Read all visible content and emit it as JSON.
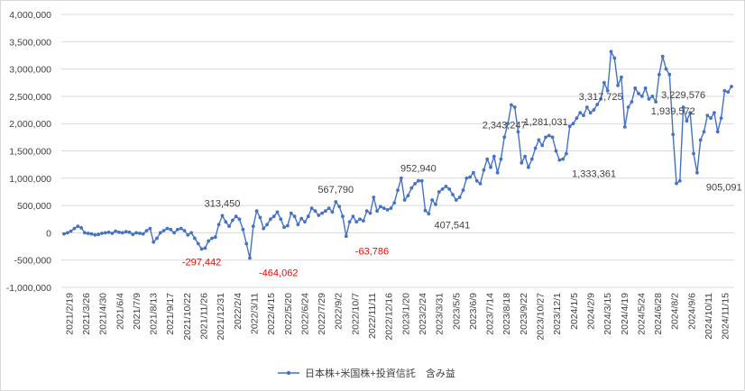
{
  "chart_data": {
    "type": "line",
    "title": "",
    "xlabel": "",
    "ylabel": "",
    "ylim": [
      -1000000,
      4000000
    ],
    "y_ticks": [
      "4,000,000",
      "3,500,000",
      "3,000,000",
      "2,500,000",
      "2,000,000",
      "1,500,000",
      "1,000,000",
      "500,000",
      "0",
      "-500,000",
      "-1,000,000"
    ],
    "y_tick_values": [
      4000000,
      3500000,
      3000000,
      2500000,
      2000000,
      1500000,
      1000000,
      500000,
      0,
      -500000,
      -1000000
    ],
    "x_ticks": [
      "2021/2/19",
      "2021/3/26",
      "2021/4/30",
      "2021/6/4",
      "2021/7/9",
      "2021/8/13",
      "2021/9/17",
      "2021/10/22",
      "2021/11/26",
      "2021/12/31",
      "2022/2/4",
      "2022/3/11",
      "2022/4/15",
      "2022/5/20",
      "2022/6/24",
      "2022/7/29",
      "2022/9/2",
      "2022/10/7",
      "2022/11/11",
      "2022/12/16",
      "2023/1/20",
      "2023/2/24",
      "2023/3/31",
      "2023/5/5",
      "2023/6/9",
      "2023/7/14",
      "2023/8/18",
      "2023/9/22",
      "2023/10/27",
      "2023/12/1",
      "2024/1/5",
      "2024/2/9",
      "2024/3/15",
      "2024/4/19",
      "2024/5/24",
      "2024/6/28",
      "2024/8/2",
      "2024/9/6",
      "2024/10/11",
      "2024/11/15"
    ],
    "grid": true,
    "legend": "bottom",
    "series": [
      {
        "name": "日本株+米国株+投資信託　含み益",
        "color": "#4472c4",
        "values": [
          -20000,
          0,
          30000,
          80000,
          120000,
          90000,
          0,
          -10000,
          -20000,
          -40000,
          -30000,
          -10000,
          0,
          10000,
          -10000,
          30000,
          10000,
          0,
          20000,
          10000,
          -30000,
          0,
          -10000,
          -20000,
          40000,
          80000,
          -170000,
          -100000,
          0,
          40000,
          80000,
          60000,
          0,
          60000,
          80000,
          40000,
          -40000,
          0,
          -100000,
          -200000,
          -297442,
          -280000,
          -150000,
          -100000,
          -80000,
          150000,
          313450,
          200000,
          120000,
          230000,
          300000,
          250000,
          60000,
          -200000,
          -464062,
          120000,
          400000,
          280000,
          80000,
          150000,
          250000,
          300000,
          380000,
          250000,
          100000,
          130000,
          360000,
          300000,
          150000,
          260000,
          200000,
          300000,
          450000,
          400000,
          320000,
          360000,
          400000,
          450000,
          380000,
          567790,
          480000,
          300000,
          -63786,
          200000,
          300000,
          200000,
          250000,
          220000,
          400000,
          360000,
          650000,
          400000,
          480000,
          450000,
          420000,
          450000,
          550000,
          780000,
          1000000,
          600000,
          680000,
          820000,
          900000,
          952940,
          950000,
          407541,
          350000,
          600000,
          520000,
          750000,
          800000,
          850000,
          800000,
          700000,
          600000,
          650000,
          780000,
          1000000,
          1020000,
          1100000,
          950000,
          900000,
          1150000,
          1350000,
          1200000,
          1400000,
          1100000,
          1350000,
          1750000,
          2000000,
          2343247,
          2300000,
          1850000,
          1281031,
          1400000,
          1200000,
          1350000,
          1550000,
          1700000,
          1600000,
          1750000,
          1780000,
          1750000,
          1500000,
          1333361,
          1350000,
          1450000,
          1950000,
          2000000,
          2100000,
          2200000,
          2150000,
          2300000,
          2200000,
          2250000,
          2350000,
          2450000,
          2750000,
          2600000,
          3317725,
          3200000,
          2700000,
          2850000,
          1939572,
          2300000,
          2400000,
          2650000,
          2550000,
          2500000,
          2650000,
          2450000,
          2500000,
          2400000,
          2900000,
          3229576,
          3000000,
          2900000,
          1800000,
          905091,
          950000,
          2300000,
          2050000,
          2200000,
          1450000,
          1100000,
          1700000,
          1850000,
          2150000,
          2100000,
          2200000,
          1850000,
          2100000,
          2600000,
          2580000,
          2680000
        ]
      }
    ],
    "annotations": [
      {
        "label": "313,450",
        "index": 46,
        "negative": false,
        "pos": "above"
      },
      {
        "label": "567,790",
        "index": 79,
        "negative": false,
        "pos": "above"
      },
      {
        "label": "952,940",
        "index": 103,
        "negative": false,
        "pos": "above"
      },
      {
        "label": "2,343,247",
        "index": 128,
        "negative": false,
        "pos": "above"
      },
      {
        "label": "3,317,725",
        "index": 164,
        "negative": false,
        "pos": "above-left"
      },
      {
        "label": "3,229,576",
        "index": 180,
        "negative": false,
        "pos": "above"
      },
      {
        "label": "-297,442",
        "index": 40,
        "negative": true,
        "pos": "below"
      },
      {
        "label": "-464,062",
        "index": 54,
        "negative": true,
        "pos": "below-right"
      },
      {
        "label": "-63,786",
        "index": 82,
        "negative": true,
        "pos": "below-right"
      },
      {
        "label": "407,541",
        "index": 105,
        "negative": false,
        "pos": "below-right"
      },
      {
        "label": "1,281,031",
        "index": 131,
        "negative": false,
        "pos": "below-right"
      },
      {
        "label": "1,333,361",
        "index": 145,
        "negative": false,
        "pos": "below-right"
      },
      {
        "label": "1,939,572",
        "index": 168,
        "negative": false,
        "pos": "below-right"
      },
      {
        "label": "905,091",
        "index": 184,
        "negative": false,
        "pos": "below-right"
      }
    ]
  }
}
